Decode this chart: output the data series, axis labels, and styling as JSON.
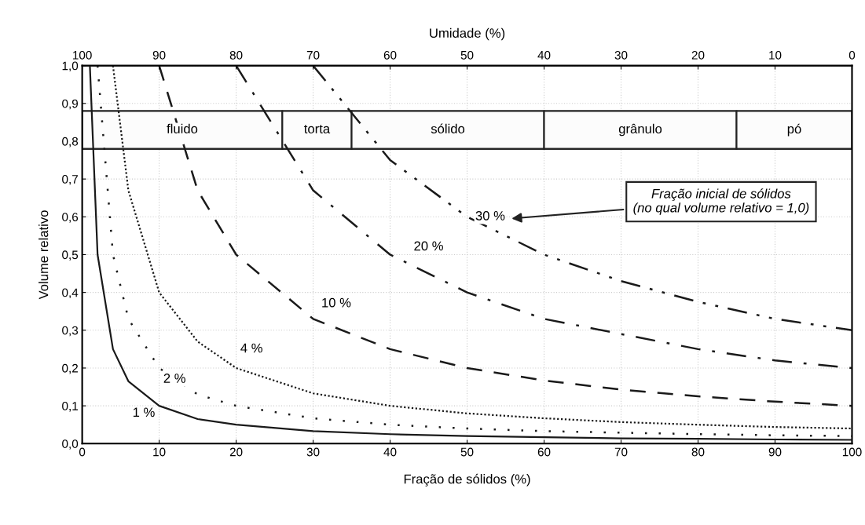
{
  "chart_data": {
    "type": "line",
    "xlabel": "Fração de sólidos (%)",
    "ylabel": "Volume relativo",
    "x2label": "Umidade (%)",
    "xlim": [
      0,
      100
    ],
    "xticks": [
      0,
      10,
      20,
      30,
      40,
      50,
      60,
      70,
      80,
      90,
      100
    ],
    "x2lim": [
      100,
      0
    ],
    "x2ticks": [
      100,
      90,
      80,
      70,
      60,
      50,
      40,
      30,
      20,
      10,
      0
    ],
    "ylim": [
      0,
      1
    ],
    "yticks": [
      {
        "value": 0,
        "label": "0,0"
      },
      {
        "value": 0.1,
        "label": "0,1"
      },
      {
        "value": 0.2,
        "label": "0,2"
      },
      {
        "value": 0.3,
        "label": "0,3"
      },
      {
        "value": 0.4,
        "label": "0,4"
      },
      {
        "value": 0.5,
        "label": "0,5"
      },
      {
        "value": 0.6,
        "label": "0,6"
      },
      {
        "value": 0.7,
        "label": "0,7"
      },
      {
        "value": 0.8,
        "label": "0,8"
      },
      {
        "value": 0.9,
        "label": "0,9"
      },
      {
        "value": 1,
        "label": "1,0"
      }
    ],
    "grid": true,
    "marker": "none",
    "series": [
      {
        "color": "#1a1a1a",
        "line_style": "solid",
        "x": [
          1,
          2,
          4,
          6,
          10,
          15,
          20,
          30,
          40,
          50,
          60,
          70,
          80,
          90,
          100
        ],
        "values": [
          1,
          0.5,
          0.25,
          0.165,
          0.1,
          0.065,
          0.05,
          0.033,
          0.025,
          0.02,
          0.017,
          0.014,
          0.013,
          0.011,
          0.01
        ]
      },
      {
        "color": "#1a1a1a",
        "line_style": "dotted",
        "x": [
          2,
          4,
          6,
          10,
          15,
          20,
          30,
          40,
          50,
          60,
          70,
          80,
          90,
          100
        ],
        "values": [
          1,
          0.5,
          0.33,
          0.2,
          0.13,
          0.1,
          0.067,
          0.05,
          0.04,
          0.033,
          0.029,
          0.025,
          0.022,
          0.02
        ]
      },
      {
        "color": "#1a1a1a",
        "line_style": "dense_dotted",
        "x": [
          4,
          6,
          10,
          15,
          20,
          30,
          40,
          50,
          60,
          70,
          80,
          90,
          100
        ],
        "values": [
          1,
          0.67,
          0.4,
          0.27,
          0.2,
          0.133,
          0.1,
          0.08,
          0.067,
          0.057,
          0.05,
          0.044,
          0.04
        ]
      },
      {
        "color": "#1a1a1a",
        "line_style": "dashed",
        "x": [
          10,
          15,
          20,
          30,
          40,
          50,
          60,
          70,
          80,
          90,
          100
        ],
        "values": [
          1,
          0.67,
          0.5,
          0.33,
          0.25,
          0.2,
          0.167,
          0.143,
          0.125,
          0.111,
          0.1
        ]
      },
      {
        "color": "#1a1a1a",
        "line_style": "dashdot",
        "x": [
          20,
          30,
          40,
          50,
          60,
          70,
          80,
          90,
          100
        ],
        "values": [
          1,
          0.67,
          0.5,
          0.4,
          0.33,
          0.29,
          0.25,
          0.22,
          0.2
        ]
      },
      {
        "color": "#1a1a1a",
        "line_style": "dashdotdot",
        "x": [
          30,
          40,
          50,
          60,
          70,
          80,
          90,
          100
        ],
        "values": [
          1,
          0.75,
          0.6,
          0.5,
          0.43,
          0.375,
          0.33,
          0.3
        ]
      }
    ],
    "bands": [
      {
        "axis": "y",
        "from": 0.78,
        "to": 0.88
      },
      {
        "axis": "x",
        "from": 0,
        "to": 26,
        "label": "fluido"
      },
      {
        "axis": "x",
        "from": 26,
        "to": 35,
        "label": "torta"
      },
      {
        "axis": "x",
        "from": 35,
        "to": 60,
        "label": "sólido"
      },
      {
        "axis": "x",
        "from": 60,
        "to": 85,
        "label": "grânulo"
      },
      {
        "axis": "x",
        "from": 85,
        "to": 100,
        "label": "pó"
      }
    ],
    "annotations": [
      {
        "text": "1 %",
        "x": 8,
        "y": 0.08
      },
      {
        "text": "2 %",
        "x": 12,
        "y": 0.17
      },
      {
        "text": "4 %",
        "x": 22,
        "y": 0.25
      },
      {
        "text": "10 %",
        "x": 33,
        "y": 0.37
      },
      {
        "text": "20 %",
        "x": 45,
        "y": 0.52
      },
      {
        "text": "30 %",
        "x": 53,
        "y": 0.6
      },
      "Fração inicial de sólidos\n(no qual volume relativo = 1,0)"
    ]
  }
}
